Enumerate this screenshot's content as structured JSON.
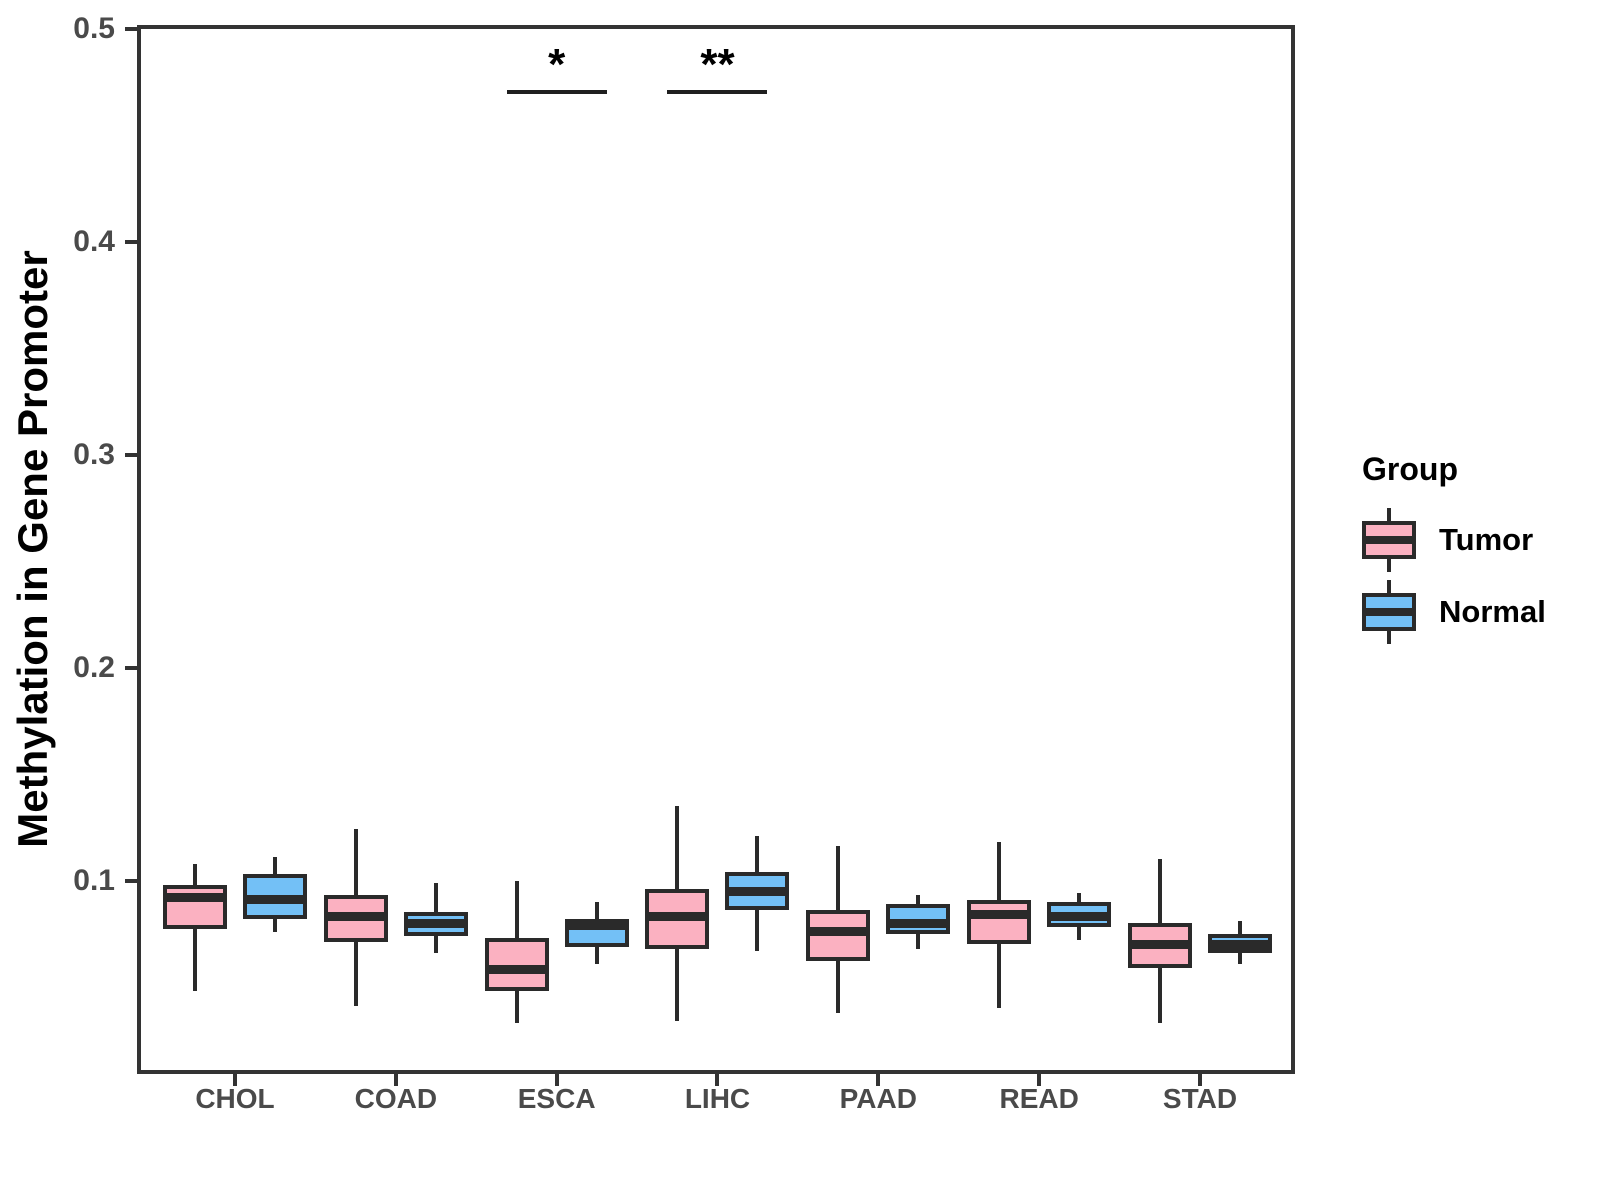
{
  "chart_data": {
    "type": "boxplot",
    "title": "",
    "xlabel": "",
    "ylabel": "Methylation in Gene Promoter",
    "ylim": [
      0.011,
      0.5
    ],
    "grid": false,
    "y_ticks": [
      {
        "value": 0.1,
        "label": "0.1"
      },
      {
        "value": 0.2,
        "label": "0.2"
      },
      {
        "value": 0.3,
        "label": "0.3"
      },
      {
        "value": 0.4,
        "label": "0.4"
      },
      {
        "value": 0.5,
        "label": "0.5"
      }
    ],
    "categories": [
      "CHOL",
      "COAD",
      "ESCA",
      "LIHC",
      "PAAD",
      "READ",
      "STAD"
    ],
    "series": [
      {
        "name": "Tumor",
        "color": "#FBB1C1",
        "boxes": [
          {
            "whisker_low": 0.048,
            "q1": 0.077,
            "median": 0.092,
            "q3": 0.098,
            "whisker_high": 0.108
          },
          {
            "whisker_low": 0.041,
            "q1": 0.071,
            "median": 0.083,
            "q3": 0.093,
            "whisker_high": 0.124
          },
          {
            "whisker_low": 0.033,
            "q1": 0.048,
            "median": 0.058,
            "q3": 0.073,
            "whisker_high": 0.1
          },
          {
            "whisker_low": 0.034,
            "q1": 0.068,
            "median": 0.083,
            "q3": 0.096,
            "whisker_high": 0.135
          },
          {
            "whisker_low": 0.038,
            "q1": 0.062,
            "median": 0.076,
            "q3": 0.086,
            "whisker_high": 0.116
          },
          {
            "whisker_low": 0.04,
            "q1": 0.07,
            "median": 0.084,
            "q3": 0.091,
            "whisker_high": 0.118
          },
          {
            "whisker_low": 0.033,
            "q1": 0.059,
            "median": 0.07,
            "q3": 0.08,
            "whisker_high": 0.11
          }
        ]
      },
      {
        "name": "Normal",
        "color": "#73C0F6",
        "boxes": [
          {
            "whisker_low": 0.076,
            "q1": 0.082,
            "median": 0.091,
            "q3": 0.103,
            "whisker_high": 0.111
          },
          {
            "whisker_low": 0.066,
            "q1": 0.074,
            "median": 0.08,
            "q3": 0.085,
            "whisker_high": 0.099
          },
          {
            "whisker_low": 0.061,
            "q1": 0.069,
            "median": 0.079,
            "q3": 0.082,
            "whisker_high": 0.09
          },
          {
            "whisker_low": 0.067,
            "q1": 0.086,
            "median": 0.095,
            "q3": 0.104,
            "whisker_high": 0.121
          },
          {
            "whisker_low": 0.068,
            "q1": 0.075,
            "median": 0.08,
            "q3": 0.089,
            "whisker_high": 0.093
          },
          {
            "whisker_low": 0.072,
            "q1": 0.078,
            "median": 0.083,
            "q3": 0.09,
            "whisker_high": 0.094
          },
          {
            "whisker_low": 0.061,
            "q1": 0.066,
            "median": 0.07,
            "q3": 0.075,
            "whisker_high": 0.081
          }
        ]
      }
    ],
    "significance": [
      {
        "category": "ESCA",
        "label": "*"
      },
      {
        "category": "LIHC",
        "label": "**"
      }
    ],
    "legend": {
      "title": "Group",
      "position": "right"
    }
  },
  "colors": {
    "tumor_fill": "#FBB1C1",
    "normal_fill": "#73C0F6",
    "box_stroke": "#2a2a2a",
    "panel_border": "#333333",
    "axis_text": "#4a4a4a",
    "title_text": "#000000",
    "background": "#ffffff"
  }
}
